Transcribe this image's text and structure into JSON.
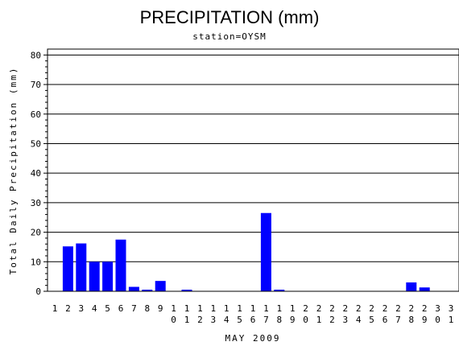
{
  "chart_data": {
    "type": "bar",
    "title": "PRECIPITATION (mm)",
    "subtitle": "station=OYSM",
    "xlabel": "MAY 2009",
    "ylabel": "Total Daily Precipitation (mm)",
    "ylim": [
      0,
      82
    ],
    "yticks": [
      0,
      10,
      20,
      30,
      40,
      50,
      60,
      70,
      80
    ],
    "grid": true,
    "bar_color": "#0000ff",
    "categories": [
      "1",
      "2",
      "3",
      "4",
      "5",
      "6",
      "7",
      "8",
      "9",
      "10",
      "11",
      "12",
      "13",
      "14",
      "15",
      "16",
      "17",
      "18",
      "19",
      "20",
      "21",
      "22",
      "23",
      "24",
      "25",
      "26",
      "27",
      "28",
      "29",
      "30",
      "31"
    ],
    "values": [
      0,
      15.2,
      16.2,
      10.0,
      10.0,
      17.5,
      1.5,
      0.3,
      3.5,
      0,
      0.3,
      0,
      0,
      0,
      0,
      0,
      26.5,
      0.3,
      0,
      0,
      0,
      0,
      0,
      0,
      0,
      0,
      0,
      3.0,
      1.3,
      0,
      0
    ]
  }
}
